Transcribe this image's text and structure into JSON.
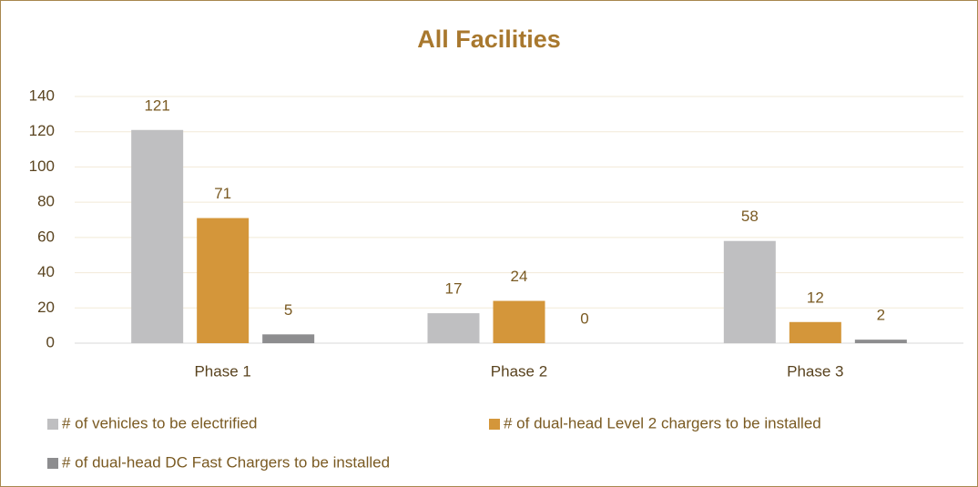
{
  "chart_data": {
    "type": "bar",
    "title": "All Facilities",
    "categories": [
      "Phase 1",
      "Phase 2",
      "Phase 3"
    ],
    "series": [
      {
        "name": "# of vehicles to be electrified",
        "color": "#bfbfc1",
        "values": [
          121,
          17,
          58
        ]
      },
      {
        "name": "# of dual-head Level 2 chargers to be installed",
        "color": "#d4963a",
        "values": [
          71,
          24,
          12
        ]
      },
      {
        "name": "# of dual-head DC Fast Chargers to be installed",
        "color": "#8d8d8f",
        "values": [
          5,
          0,
          2
        ]
      }
    ],
    "ylim": [
      0,
      140
    ],
    "yticks": [
      0,
      20,
      40,
      60,
      80,
      100,
      120,
      140
    ],
    "grid": true,
    "legend": "bottom"
  }
}
